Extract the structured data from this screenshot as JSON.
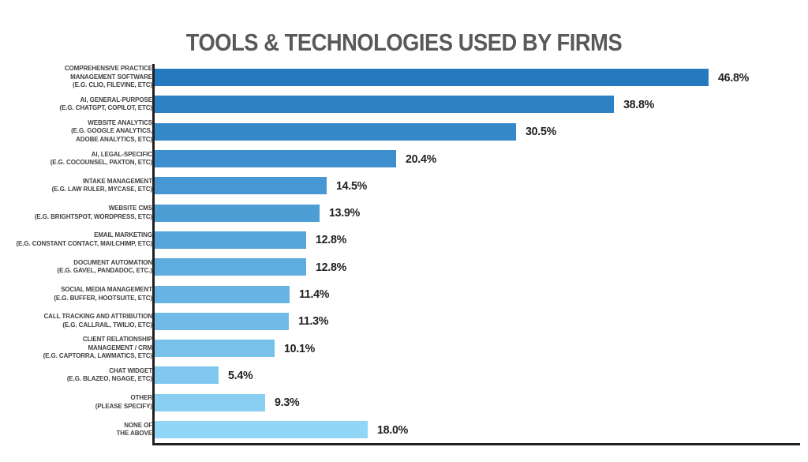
{
  "page": {
    "background": "#ffffff"
  },
  "header": {
    "title": "TOOLS & TECHNOLOGIES USED BY FIRMS",
    "title_color": "#58595B"
  },
  "axis": {
    "color": "#231F20"
  },
  "chart_data": {
    "type": "bar",
    "orientation": "horizontal",
    "title": "TOOLS & TECHNOLOGIES USED BY FIRMS",
    "xlabel": "",
    "ylabel": "",
    "xlim": [
      0,
      50
    ],
    "grid": false,
    "legend": "none",
    "value_suffix": "%",
    "categories": [
      "COMPREHENSIVE PRACTICE MANAGEMENT SOFTWARE (E.G. CLIO, FILEVINE, ETC)",
      "AI, GENERAL-PURPOSE (E.G. CHATGPT, COPILOT, ETC)",
      "WEBSITE ANALYTICS (E.G. GOOGLE ANALYTICS, ADOBE ANALYTICS, ETC)",
      "AI, LEGAL-SPECIFIC (E.G. COCOUNSEL, PAXTON, ETC)",
      "INTAKE MANAGEMENT (E.G. LAW RULER, MYCASE, ETC)",
      "WEBSITE CMS (E.G. BRIGHTSPOT, WORDPRESS, ETC)",
      "EMAIL MARKETING (E.G. CONSTANT CONTACT, MAILCHIMP, ETC)",
      "DOCUMENT AUTOMATION (E.G. GAVEL, PANDADOC, ETC.)",
      "SOCIAL MEDIA MANAGEMENT (E.G. BUFFER, HOOTSUITE, ETC)",
      "CALL TRACKING AND ATTRIBUTION (E.G. CALLRAIL, TWILIO, ETC)",
      "CLIENT RELATIONSHIP MANAGEMENT / CRM (E.G. CAPTORRA, LAWMATICS, ETC)",
      "CHAT WIDGET (E.G. BLAZEO, NGAGE, ETC)",
      "OTHER (PLEASE SPECIFY)",
      "NONE OF THE ABOVE"
    ],
    "values": [
      46.8,
      38.8,
      30.5,
      20.4,
      14.5,
      13.9,
      12.8,
      12.8,
      11.4,
      11.3,
      10.1,
      5.4,
      9.3,
      18.0
    ],
    "rows": [
      {
        "label_lines": [
          "COMPREHENSIVE PRACTICE",
          "MANAGEMENT SOFTWARE",
          "(E.G. CLIO, FILEVINE, ETC)"
        ],
        "value": 46.8,
        "value_label": "46.8%",
        "color": "#2579BE"
      },
      {
        "label_lines": [
          "AI, GENERAL-PURPOSE",
          "(E.G. CHATGPT, COPILOT, ETC)"
        ],
        "value": 38.8,
        "value_label": "38.8%",
        "color": "#2D81C4"
      },
      {
        "label_lines": [
          "WEBSITE ANALYTICS",
          "(E.G. GOOGLE ANALYTICS,",
          "ADOBE ANALYTICS, ETC)"
        ],
        "value": 30.5,
        "value_label": "30.5%",
        "color": "#3589C9"
      },
      {
        "label_lines": [
          "AI, LEGAL-SPECIFIC",
          "(E.G. COCOUNSEL, PAXTON, ETC)"
        ],
        "value": 20.4,
        "value_label": "20.4%",
        "color": "#3D90CD"
      },
      {
        "label_lines": [
          "INTAKE MANAGEMENT",
          "(E.G. LAW RULER, MYCASE, ETC)"
        ],
        "value": 14.5,
        "value_label": "14.5%",
        "color": "#4697D2"
      },
      {
        "label_lines": [
          "WEBSITE CMS",
          "(E.G. BRIGHTSPOT, WORDPRESS, ETC)"
        ],
        "value": 13.9,
        "value_label": "13.9%",
        "color": "#4E9ED6"
      },
      {
        "label_lines": [
          "EMAIL MARKETING",
          "(E.G. CONSTANT CONTACT, MAILCHIMP, ETC)"
        ],
        "value": 12.8,
        "value_label": "12.8%",
        "color": "#56A5DA"
      },
      {
        "label_lines": [
          "DOCUMENT AUTOMATION",
          "(E.G. GAVEL, PANDADOC, ETC.)"
        ],
        "value": 12.8,
        "value_label": "12.8%",
        "color": "#5FACDE"
      },
      {
        "label_lines": [
          "SOCIAL MEDIA MANAGEMENT",
          "(E.G. BUFFER, HOOTSUITE, ETC)"
        ],
        "value": 11.4,
        "value_label": "11.4%",
        "color": "#67B3E3"
      },
      {
        "label_lines": [
          "CALL TRACKING AND ATTRIBUTION",
          "(E.G. CALLRAIL, TWILIO, ETC)"
        ],
        "value": 11.3,
        "value_label": "11.3%",
        "color": "#6FBAE7"
      },
      {
        "label_lines": [
          "CLIENT RELATIONSHIP",
          "MANAGEMENT / CRM",
          "(E.G. CAPTORRA, LAWMATICS, ETC)"
        ],
        "value": 10.1,
        "value_label": "10.1%",
        "color": "#78C1EB"
      },
      {
        "label_lines": [
          "CHAT WIDGET",
          "(E.G. BLAZEO, NGAGE, ETC)"
        ],
        "value": 5.4,
        "value_label": "5.4%",
        "color": "#80C8EF"
      },
      {
        "label_lines": [
          "OTHER",
          "(PLEASE SPECIFY)"
        ],
        "value": 9.3,
        "value_label": "9.3%",
        "color": "#88CFF2"
      },
      {
        "label_lines": [
          "NONE OF",
          "THE ABOVE"
        ],
        "value": 18.0,
        "value_label": "18.0%",
        "color": "#91D6F6"
      }
    ]
  }
}
